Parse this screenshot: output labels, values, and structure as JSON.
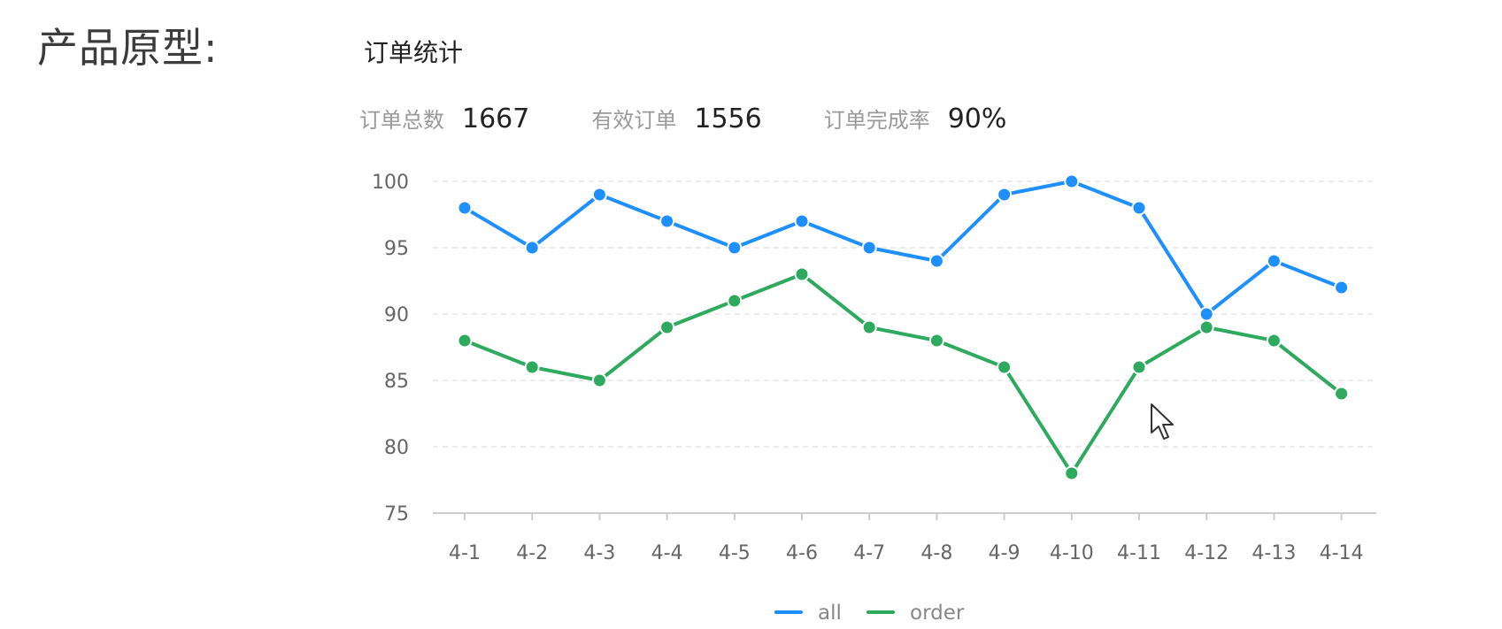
{
  "page": {
    "heading": "产品原型:"
  },
  "panel": {
    "title": "订单统计"
  },
  "stats": [
    {
      "label": "订单总数",
      "value": "1667"
    },
    {
      "label": "有效订单",
      "value": "1556"
    },
    {
      "label": "订单完成率",
      "value": "90%"
    }
  ],
  "chart_data": {
    "type": "line",
    "categories": [
      "4-1",
      "4-2",
      "4-3",
      "4-4",
      "4-5",
      "4-6",
      "4-7",
      "4-8",
      "4-9",
      "4-10",
      "4-11",
      "4-12",
      "4-13",
      "4-14"
    ],
    "series": [
      {
        "name": "all",
        "color": "#1e8fff",
        "values": [
          98,
          95,
          99,
          97,
          95,
          97,
          95,
          94,
          99,
          100,
          98,
          90,
          94,
          92
        ]
      },
      {
        "name": "order",
        "color": "#2eaa5f",
        "values": [
          88,
          86,
          85,
          89,
          91,
          93,
          89,
          88,
          86,
          78,
          86,
          89,
          88,
          84
        ]
      }
    ],
    "ylim": [
      75,
      100
    ],
    "yticks": [
      75,
      80,
      85,
      90,
      95,
      100
    ],
    "grid": true,
    "legend_position": "bottom-center"
  }
}
